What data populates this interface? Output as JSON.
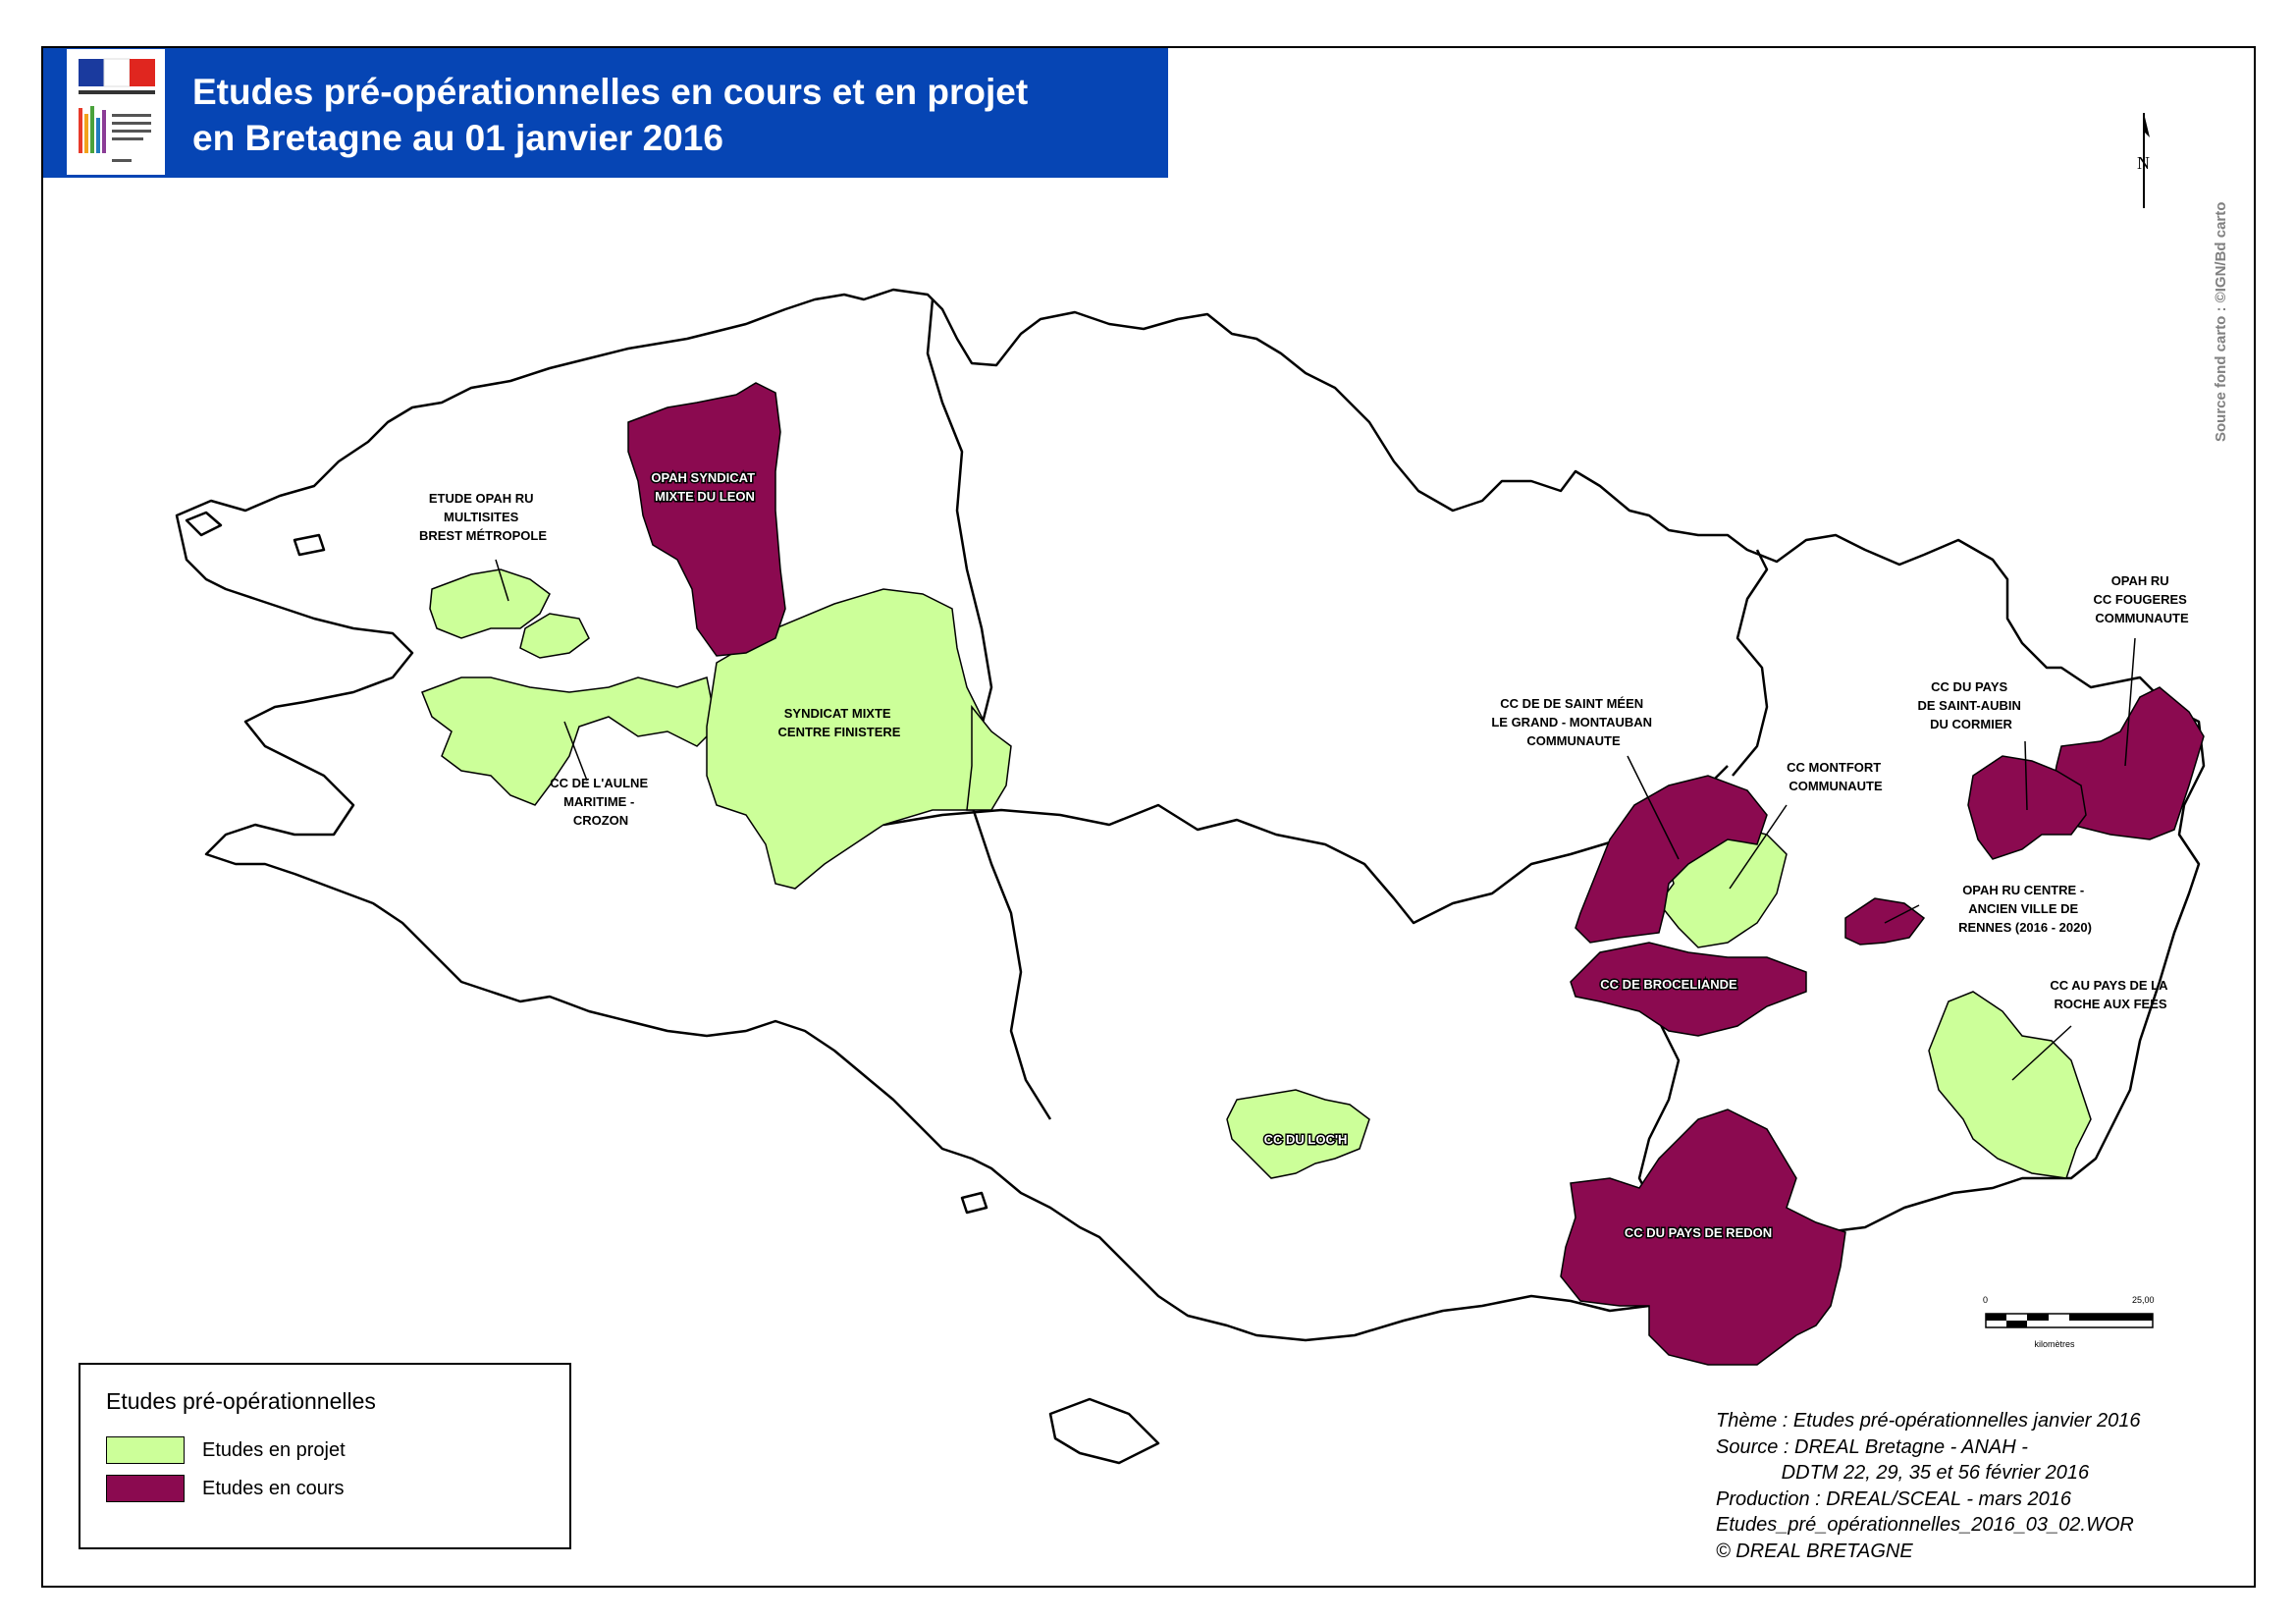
{
  "header": {
    "title_line1": "Etudes pré-opérationnelles en cours et en projet",
    "title_line2": "en Bretagne au 01 janvier 2016"
  },
  "credit": "Source fond carto : ©IGN/Bd carto",
  "north_label": "N",
  "colors": {
    "projet": "#ccff99",
    "cours": "#8b0a50",
    "header_bg": "#0645b4"
  },
  "labels": {
    "brest": [
      "ETUDE OPAH RU",
      "MULTISITES",
      "BREST MÉTROPOLE"
    ],
    "leon": [
      "OPAH SYNDICAT",
      "MIXTE DU LEON"
    ],
    "centre_finistere": [
      "SYNDICAT MIXTE",
      "CENTRE FINISTERE"
    ],
    "aulne": [
      "CC DE L'AULNE",
      "MARITIME -",
      "CROZON"
    ],
    "saint_meen": [
      "CC DE DE SAINT MÉEN",
      "LE GRAND - MONTAUBAN",
      "COMMUNAUTE"
    ],
    "montfort": [
      "CC MONTFORT",
      "COMMUNAUTE"
    ],
    "broceliande": [
      "CC DE BROCELIANDE"
    ],
    "rennes": [
      "OPAH RU CENTRE -",
      "ANCIEN VILLE DE",
      "RENNES (2016 - 2020)"
    ],
    "fougeres": [
      "OPAH RU",
      "CC FOUGERES",
      "COMMUNAUTE"
    ],
    "saint_aubin": [
      "CC DU PAYS",
      "DE SAINT-AUBIN",
      "DU CORMIER"
    ],
    "roche_fees": [
      "CC AU PAYS DE LA",
      "ROCHE AUX FEES"
    ],
    "loch": [
      "CC DU LOC'H"
    ],
    "redon": [
      "CC DU PAYS DE REDON"
    ]
  },
  "scale": {
    "start": "0",
    "end": "25,00",
    "unit": "kilomètres"
  },
  "legend": {
    "title": "Etudes pré-opérationnelles",
    "items": [
      {
        "label": "Etudes en projet",
        "color": "#ccff99"
      },
      {
        "label": "Etudes en cours",
        "color": "#8b0a50"
      }
    ]
  },
  "meta": {
    "line1": "Thème : Etudes pré-opérationnelles janvier 2016",
    "line2": "Source : DREAL Bretagne - ANAH -",
    "line3": "            DDTM 22, 29, 35 et 56 février 2016",
    "line4": "Production : DREAL/SCEAL - mars 2016",
    "line5": "Etudes_pré_opérationnelles_2016_03_02.WOR",
    "line6": "© DREAL BRETAGNE"
  }
}
